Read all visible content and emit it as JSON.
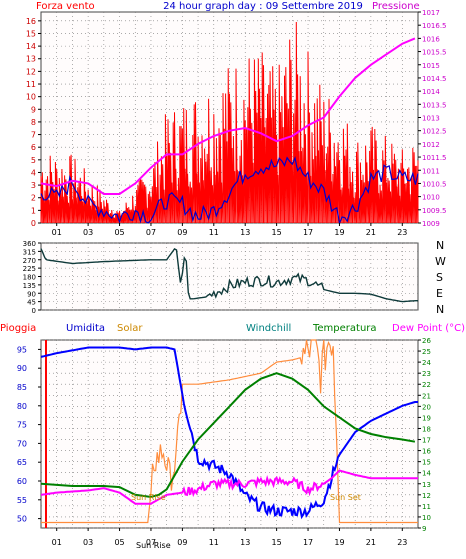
{
  "colors": {
    "wind": "#ff0000",
    "pressure": "#ff00ff",
    "gust_line": "#0000cc",
    "dirline": "#0f3a3a",
    "rain": "#ff0000",
    "humidity": "#0000ff",
    "solar": "#ff8c3c",
    "windchill": "#008080",
    "temperature": "#008000",
    "dewpoint": "#ff00ff",
    "plot_bg": "#fffcfc",
    "grid": "#7a7a7a"
  },
  "headers": {
    "wind_label": "Forza vento",
    "title": "24 hour graph day : 09 Settembre 2019",
    "pressure_label": "Pressione",
    "compass": [
      "N",
      "W",
      "S",
      "E",
      "N"
    ],
    "pioggia": "Pioggia",
    "umidita": "Umidita",
    "solar": "Solar",
    "windchill": "Windchill",
    "temperatura": "Temperatura",
    "dewpoint": "Dew Point (°C)",
    "sunrise": "Sun Rise",
    "sunset": "Sun Set",
    "sunrise_axis": "Sun Rise"
  },
  "chart_data": [
    {
      "type": "line",
      "x_ticks": [
        "01",
        "03",
        "05",
        "07",
        "09",
        "11",
        "13",
        "15",
        "17",
        "19",
        "21",
        "23"
      ],
      "left_axis": {
        "ticks": [
          "0",
          "1",
          "2",
          "3",
          "4",
          "5",
          "6",
          "7",
          "8",
          "9",
          "10",
          "11",
          "12",
          "13",
          "14",
          "15",
          "16"
        ],
        "range": [
          0,
          16.7
        ]
      },
      "right_axis": {
        "ticks": [
          "1009",
          "1009.5",
          "1010",
          "1010.5",
          "1011",
          "1011.5",
          "1012",
          "1012.5",
          "1013",
          "1013.5",
          "1014",
          "1014.5",
          "1015",
          "1015.5",
          "1016",
          "1016.5",
          "1017"
        ],
        "range": [
          1009,
          1017
        ]
      },
      "series": [
        {
          "name": "Forza vento",
          "hours": [
            0,
            2,
            4,
            5,
            6,
            7,
            8,
            9,
            10,
            11,
            12,
            13,
            14,
            15,
            16,
            17,
            18,
            19,
            20,
            21,
            22,
            23,
            23.8
          ],
          "values": [
            6,
            5.5,
            2.5,
            1,
            3,
            5,
            9,
            10,
            11,
            12,
            13,
            14,
            14,
            12,
            16.7,
            14,
            11,
            10,
            7,
            8,
            7,
            6,
            7
          ]
        },
        {
          "name": "Pressione",
          "hours": [
            0,
            1,
            2,
            3,
            4,
            5,
            6,
            7,
            8,
            9,
            10,
            11,
            12,
            13,
            14,
            15,
            16,
            17,
            18,
            19,
            20,
            21,
            22,
            23,
            23.8
          ],
          "values": [
            1010.5,
            1010.4,
            1010.6,
            1010.5,
            1010.1,
            1010.1,
            1010.5,
            1011.1,
            1011.6,
            1011.6,
            1012,
            1012.3,
            1012.5,
            1012.6,
            1012.4,
            1012.1,
            1012.3,
            1012.7,
            1013,
            1013.8,
            1014.5,
            1015,
            1015.4,
            1015.8,
            1016
          ]
        },
        {
          "hours": [
            0,
            1,
            2,
            3,
            4,
            5,
            6,
            7,
            8,
            9,
            10,
            11,
            12,
            13,
            14,
            15,
            16,
            17,
            18,
            19,
            20,
            21,
            22,
            23,
            23.8
          ],
          "values": [
            2.5,
            2,
            3.3,
            1.5,
            1,
            0.5,
            1,
            0.5,
            1.8,
            1.5,
            0.5,
            1,
            2.5,
            4,
            4.5,
            4.5,
            5,
            3.5,
            2.5,
            0.5,
            1.2,
            3.5,
            4,
            3.5,
            3.5
          ]
        }
      ]
    },
    {
      "type": "line",
      "title": "N W S E N",
      "y_ticks": [
        "0",
        "45",
        "90",
        "135",
        "180",
        "225",
        "270",
        "315",
        "360"
      ],
      "range": [
        0,
        360
      ],
      "hours": [
        0,
        0.3,
        2,
        4,
        7,
        8,
        8.6,
        8.9,
        9.2,
        9.4,
        9.7,
        10.5,
        11,
        12,
        13,
        14,
        15,
        16,
        17,
        18,
        19,
        20,
        21,
        22,
        23,
        23.8
      ],
      "values": [
        330,
        270,
        250,
        260,
        270,
        270,
        340,
        130,
        330,
        60,
        60,
        70,
        90,
        130,
        150,
        160,
        150,
        170,
        160,
        110,
        90,
        90,
        85,
        60,
        45,
        50
      ]
    },
    {
      "type": "line",
      "x_ticks": [
        "01",
        "03",
        "05",
        "07",
        "09",
        "11",
        "13",
        "15",
        "17",
        "19",
        "21",
        "23"
      ],
      "left_axis": {
        "ticks": [
          "50",
          "55",
          "60",
          "65",
          "70",
          "75",
          "80",
          "85",
          "90",
          "95"
        ],
        "range": [
          47.5,
          97.5
        ]
      },
      "right_axis": {
        "ticks": [
          "9",
          "10",
          "11",
          "12",
          "13",
          "14",
          "15",
          "16",
          "17",
          "18",
          "19",
          "20",
          "21",
          "22",
          "23",
          "24",
          "25",
          "26"
        ],
        "range": [
          9,
          26
        ]
      },
      "series": [
        {
          "name": "Umidita",
          "hours": [
            0,
            1,
            3,
            5,
            6,
            7,
            8,
            8.5,
            9,
            10,
            11,
            12,
            13,
            14,
            15,
            16,
            17,
            18,
            19,
            20,
            21,
            22,
            23,
            23.8
          ],
          "values": [
            93,
            94,
            95.5,
            95.5,
            95,
            95.5,
            95.5,
            95,
            83,
            66,
            64,
            62,
            56,
            53,
            52,
            52,
            52,
            55,
            67,
            73,
            76,
            78,
            80,
            81
          ]
        },
        {
          "name": "Solar",
          "hours": [
            0,
            3,
            6,
            6.8,
            7.2,
            7.8,
            8.2,
            8.6,
            9,
            10,
            11,
            12,
            13,
            14,
            15,
            16,
            16.8,
            17.4,
            17.8,
            18.3,
            18.6,
            19,
            19.3,
            19.6
          ],
          "values": [
            9.5,
            9.5,
            9.5,
            9.5,
            15,
            16,
            13.5,
            15,
            22,
            22,
            22.2,
            22.4,
            22.7,
            23,
            24,
            24.2,
            24.5,
            26,
            23,
            26,
            26,
            9.5,
            9.5,
            9.5
          ]
        },
        {
          "name": "Temperatura",
          "hours": [
            0,
            1,
            2,
            3,
            4,
            5,
            6,
            7,
            7.5,
            8,
            9,
            10,
            11,
            12,
            13,
            14,
            15,
            16,
            17,
            18,
            19,
            20,
            21,
            22,
            23,
            23.8
          ],
          "values": [
            13,
            12.9,
            12.8,
            12.8,
            12.8,
            12.7,
            12,
            11.8,
            12,
            12.5,
            15,
            17,
            18.5,
            20,
            21.5,
            22.5,
            23,
            22.5,
            21.5,
            20,
            19,
            18,
            17.5,
            17.2,
            17,
            16.8
          ]
        },
        {
          "name": "Dew Point (°C)",
          "hours": [
            0,
            1,
            2,
            3,
            4,
            5,
            6,
            7,
            8,
            9,
            10,
            11,
            12,
            13,
            14,
            15,
            16,
            17,
            18,
            18.5,
            19,
            20,
            21,
            22,
            23,
            23.8
          ],
          "values": [
            12,
            12.2,
            12.3,
            12.4,
            12.6,
            12.2,
            11.2,
            11.2,
            12,
            12.2,
            12.5,
            13,
            13,
            13,
            13.2,
            13.2,
            13.2,
            12.5,
            13,
            13.5,
            14.2,
            13.8,
            13.5,
            13.5,
            13.5,
            13.5
          ]
        }
      ]
    }
  ]
}
